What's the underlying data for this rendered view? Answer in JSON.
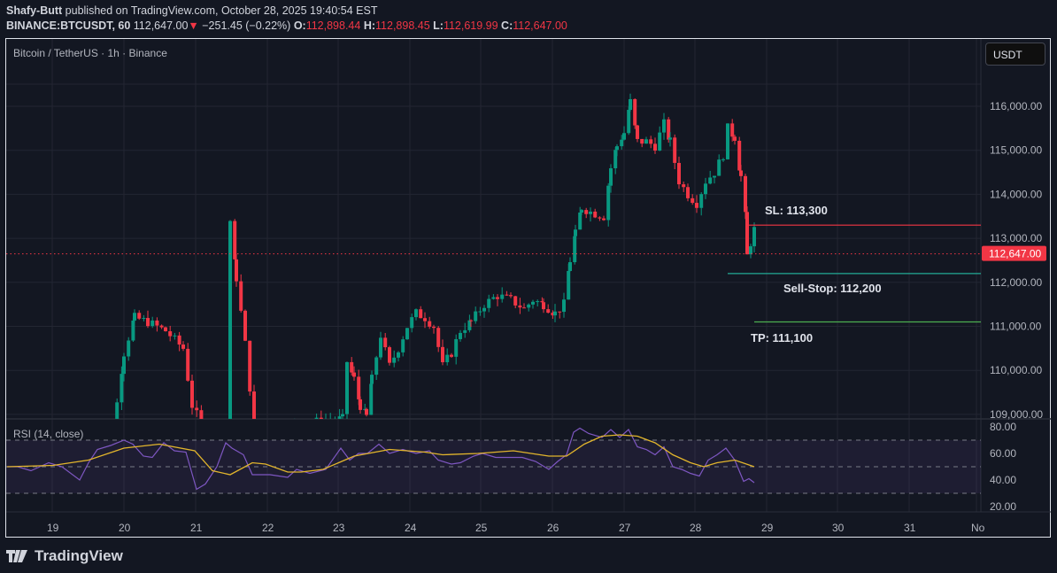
{
  "header": {
    "author": "Shafy-Butt",
    "published_text": " published on TradingView.com, October 28, 2025 19:40:54 EST",
    "symbol": "BINANCE:BTCUSDT, 60",
    "last": " 112,647.00",
    "change_arrow": "▼",
    "change": " −251.45 (−0.22%) ",
    "o_label": "O:",
    "o": "112,898.44",
    "h_label": " H:",
    "h": "112,898.45",
    "l_label": " L:",
    "l": "112,619.99",
    "c_label": " C:",
    "c": "112,647.00"
  },
  "chart_title": "Bitcoin / TetherUS · 1h · Binance",
  "currency_button": "USDT",
  "footer": {
    "brand": "TradingView"
  },
  "colors": {
    "background": "#131722",
    "grid": "#232632",
    "up": "#089981",
    "down": "#f23645",
    "rsi_line": "#7e57c2",
    "rsi_ma": "#e2b52c",
    "sl": "#f23645",
    "sell_stop": "#22ab94",
    "tp": "#4caf50"
  },
  "chart_data": {
    "type": "candlestick",
    "title": "Bitcoin / TetherUS · 1h · Binance",
    "symbol": "BINANCE:BTCUSDT",
    "interval": "60",
    "ylabel": "USDT",
    "ylim": [
      108900,
      116800
    ],
    "y_ticks": [
      "116,000.00",
      "115,000.00",
      "114,000.00",
      "113,000.00",
      "112,000.00",
      "111,000.00",
      "110,000.00",
      "109,000.00"
    ],
    "x_ticks": [
      "19",
      "20",
      "21",
      "22",
      "23",
      "24",
      "25",
      "26",
      "27",
      "28",
      "29",
      "30",
      "31",
      "No"
    ],
    "last_price": "112,647.00",
    "ohlc": {
      "open": 112898.44,
      "high": 112898.45,
      "low": 112619.99,
      "close": 112647.0,
      "change": -251.45,
      "change_pct": -0.22
    },
    "path": [
      [
        100,
        108700
      ],
      [
        125,
        108500
      ],
      [
        138,
        110400
      ],
      [
        150,
        111200
      ],
      [
        165,
        111100
      ],
      [
        185,
        110900
      ],
      [
        205,
        110500
      ],
      [
        215,
        109200
      ],
      [
        230,
        108600
      ],
      [
        255,
        108600
      ],
      [
        258,
        113400
      ],
      [
        265,
        112100
      ],
      [
        275,
        110600
      ],
      [
        285,
        108700
      ],
      [
        310,
        108600
      ],
      [
        340,
        108800
      ],
      [
        385,
        108900
      ],
      [
        390,
        110200
      ],
      [
        398,
        109800
      ],
      [
        405,
        109200
      ],
      [
        412,
        108950
      ],
      [
        418,
        109800
      ],
      [
        428,
        110800
      ],
      [
        438,
        110100
      ],
      [
        448,
        110500
      ],
      [
        458,
        111000
      ],
      [
        468,
        111300
      ],
      [
        478,
        111200
      ],
      [
        488,
        111000
      ],
      [
        498,
        110100
      ],
      [
        508,
        110400
      ],
      [
        518,
        110900
      ],
      [
        530,
        111100
      ],
      [
        545,
        111500
      ],
      [
        560,
        111700
      ],
      [
        575,
        111600
      ],
      [
        590,
        111400
      ],
      [
        600,
        111600
      ],
      [
        612,
        111500
      ],
      [
        625,
        111300
      ],
      [
        635,
        111500
      ],
      [
        642,
        112500
      ],
      [
        648,
        113100
      ],
      [
        655,
        113700
      ],
      [
        665,
        113600
      ],
      [
        680,
        113500
      ],
      [
        688,
        114600
      ],
      [
        695,
        115100
      ],
      [
        703,
        115400
      ],
      [
        710,
        116100
      ],
      [
        718,
        115200
      ],
      [
        728,
        115200
      ],
      [
        738,
        115100
      ],
      [
        748,
        115600
      ],
      [
        755,
        115200
      ],
      [
        765,
        114300
      ],
      [
        775,
        114000
      ],
      [
        785,
        113800
      ],
      [
        795,
        114300
      ],
      [
        805,
        114500
      ],
      [
        815,
        114900
      ],
      [
        820,
        115500
      ],
      [
        828,
        115300
      ],
      [
        835,
        114400
      ],
      [
        840,
        113500
      ],
      [
        842,
        112600
      ],
      [
        846,
        112900
      ],
      [
        850,
        113200
      ],
      [
        854,
        112647
      ]
    ],
    "annotations": [
      {
        "label": "SL: 113,300",
        "price": 113300,
        "color": "#f23645"
      },
      {
        "label": "Sell-Stop: 112,200",
        "price": 112200,
        "color": "#22ab94"
      },
      {
        "label": "TP: 111,100",
        "price": 111100,
        "color": "#4caf50"
      }
    ],
    "rsi": {
      "title": "RSI (14, close)",
      "ylim": [
        15,
        85
      ],
      "y_ticks": [
        "80.00",
        "60.00",
        "40.00",
        "20.00"
      ],
      "bands": {
        "upper": 70,
        "middle": 50,
        "lower": 30
      },
      "rsi_points": [
        [
          8,
          50
        ],
        [
          20,
          50
        ],
        [
          35,
          47
        ],
        [
          55,
          53
        ],
        [
          70,
          50
        ],
        [
          90,
          40
        ],
        [
          100,
          53
        ],
        [
          110,
          63
        ],
        [
          125,
          66
        ],
        [
          140,
          70
        ],
        [
          150,
          67
        ],
        [
          162,
          58
        ],
        [
          172,
          57
        ],
        [
          185,
          68
        ],
        [
          197,
          62
        ],
        [
          210,
          61
        ],
        [
          222,
          33
        ],
        [
          232,
          37
        ],
        [
          245,
          50
        ],
        [
          255,
          68
        ],
        [
          262,
          64
        ],
        [
          275,
          59
        ],
        [
          285,
          44
        ],
        [
          305,
          44
        ],
        [
          325,
          42
        ],
        [
          335,
          48
        ],
        [
          350,
          45
        ],
        [
          368,
          48
        ],
        [
          385,
          64
        ],
        [
          395,
          55
        ],
        [
          405,
          60
        ],
        [
          415,
          60
        ],
        [
          428,
          67
        ],
        [
          440,
          60
        ],
        [
          455,
          63
        ],
        [
          470,
          60
        ],
        [
          485,
          62
        ],
        [
          495,
          55
        ],
        [
          510,
          52
        ],
        [
          520,
          53
        ],
        [
          535,
          58
        ],
        [
          545,
          60
        ],
        [
          560,
          57
        ],
        [
          575,
          57
        ],
        [
          590,
          57
        ],
        [
          605,
          54
        ],
        [
          620,
          48
        ],
        [
          630,
          54
        ],
        [
          640,
          59
        ],
        [
          648,
          76
        ],
        [
          655,
          79
        ],
        [
          665,
          75
        ],
        [
          680,
          72
        ],
        [
          690,
          78
        ],
        [
          700,
          72
        ],
        [
          710,
          78
        ],
        [
          720,
          65
        ],
        [
          730,
          63
        ],
        [
          740,
          59
        ],
        [
          750,
          65
        ],
        [
          760,
          50
        ],
        [
          770,
          48
        ],
        [
          780,
          45
        ],
        [
          790,
          43
        ],
        [
          800,
          55
        ],
        [
          810,
          59
        ],
        [
          820,
          64
        ],
        [
          830,
          55
        ],
        [
          840,
          39
        ],
        [
          846,
          41
        ],
        [
          852,
          38
        ]
      ],
      "ma_points": [
        [
          8,
          50
        ],
        [
          60,
          51
        ],
        [
          100,
          55
        ],
        [
          140,
          64
        ],
        [
          180,
          67
        ],
        [
          220,
          62
        ],
        [
          240,
          47
        ],
        [
          260,
          44
        ],
        [
          285,
          53
        ],
        [
          300,
          52
        ],
        [
          325,
          46
        ],
        [
          340,
          46
        ],
        [
          365,
          48
        ],
        [
          400,
          58
        ],
        [
          440,
          63
        ],
        [
          480,
          61
        ],
        [
          500,
          59
        ],
        [
          540,
          60
        ],
        [
          580,
          62
        ],
        [
          620,
          58
        ],
        [
          640,
          58
        ],
        [
          660,
          67
        ],
        [
          680,
          73
        ],
        [
          700,
          74
        ],
        [
          720,
          73
        ],
        [
          740,
          68
        ],
        [
          760,
          59
        ],
        [
          780,
          53
        ],
        [
          795,
          50
        ],
        [
          810,
          53
        ],
        [
          830,
          55
        ],
        [
          852,
          50
        ]
      ]
    }
  }
}
